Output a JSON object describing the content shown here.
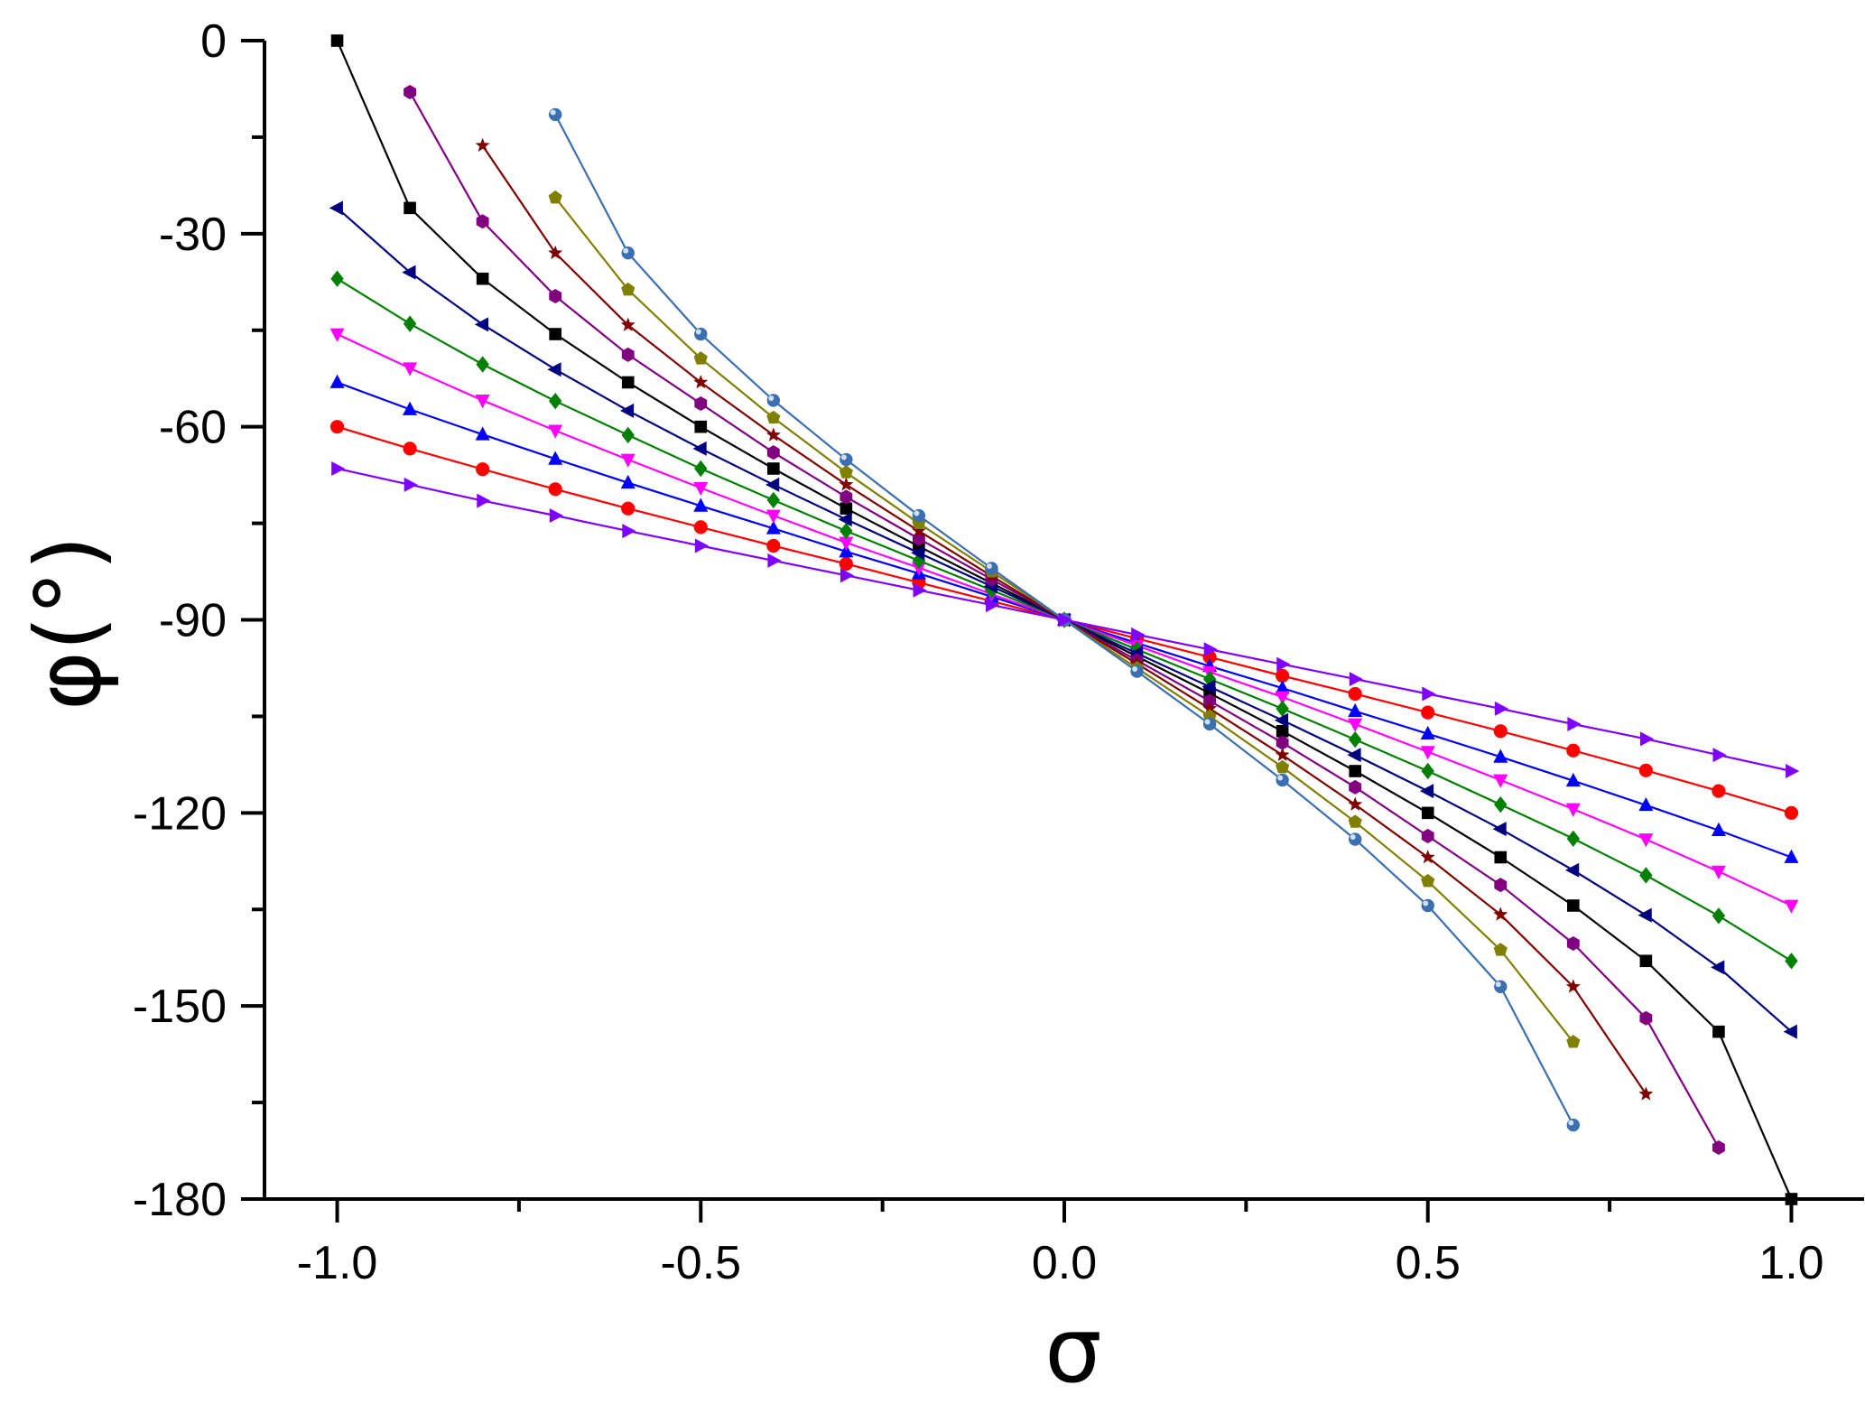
{
  "chart_data": {
    "type": "line",
    "xlabel": "σ",
    "ylabel": "φ(°)",
    "xlim": [
      -1.1,
      1.1
    ],
    "ylim": [
      -180,
      0
    ],
    "x_ticks": [
      -1.0,
      -0.5,
      0.0,
      0.5,
      1.0
    ],
    "x_tick_labels": [
      "-1.0",
      "-0.5",
      "0.0",
      "0.5",
      "1.0"
    ],
    "y_ticks": [
      0,
      -30,
      -60,
      -90,
      -120,
      -150,
      -180
    ],
    "y_tick_labels": [
      "0",
      "-30",
      "-60",
      "-90",
      "-120",
      "-150",
      "-180"
    ],
    "grid": false,
    "legend": "none",
    "series": [
      {
        "color": "#000000",
        "marker": "square",
        "x": [
          -1.0,
          -0.9,
          -0.8,
          -0.7,
          -0.6,
          -0.5,
          -0.4,
          -0.3,
          -0.2,
          -0.1,
          0.0,
          0.1,
          0.2,
          0.3,
          0.4,
          0.5,
          0.6,
          0.7,
          0.8,
          0.9,
          1.0
        ],
        "y": [
          0,
          -26,
          -37,
          -45.6,
          -53.1,
          -60,
          -66.5,
          -72.7,
          -78.6,
          -84.3,
          -90,
          -95.7,
          -101.4,
          -107.3,
          -113.5,
          -120,
          -126.9,
          -134.4,
          -143,
          -154,
          -180
        ]
      },
      {
        "color": "#ff0000",
        "marker": "circle",
        "x": [
          -1.0,
          -0.9,
          -0.8,
          -0.7,
          -0.6,
          -0.5,
          -0.4,
          -0.3,
          -0.2,
          -0.1,
          0.0,
          0.1,
          0.2,
          0.3,
          0.4,
          0.5,
          0.6,
          0.7,
          0.8,
          0.9,
          1.0
        ],
        "y": [
          -60,
          -63.4,
          -66.6,
          -69.7,
          -72.7,
          -75.6,
          -78.5,
          -81.3,
          -84.2,
          -87.1,
          -90,
          -92.9,
          -95.8,
          -98.7,
          -101.5,
          -104.4,
          -107.3,
          -110.3,
          -113.4,
          -116.6,
          -120
        ]
      },
      {
        "color": "#0000ff",
        "marker": "triangle-up",
        "x": [
          -1.0,
          -0.9,
          -0.8,
          -0.7,
          -0.6,
          -0.5,
          -0.4,
          -0.3,
          -0.2,
          -0.1,
          0.0,
          0.1,
          0.2,
          0.3,
          0.4,
          0.5,
          0.6,
          0.7,
          0.8,
          0.9,
          1.0
        ],
        "y": [
          -53.1,
          -57.3,
          -61.2,
          -65,
          -68.7,
          -72.3,
          -75.8,
          -79.4,
          -82.8,
          -86.4,
          -90,
          -93.6,
          -97.2,
          -100.6,
          -104.2,
          -107.7,
          -111.3,
          -115,
          -118.8,
          -122.7,
          -126.9
        ]
      },
      {
        "color": "#ff00ff",
        "marker": "triangle-down",
        "x": [
          -1.0,
          -0.9,
          -0.8,
          -0.7,
          -0.6,
          -0.5,
          -0.4,
          -0.3,
          -0.2,
          -0.1,
          0.0,
          0.1,
          0.2,
          0.3,
          0.4,
          0.5,
          0.6,
          0.7,
          0.8,
          0.9,
          1.0
        ],
        "y": [
          -45.6,
          -50.9,
          -55.9,
          -60.6,
          -65.1,
          -69.5,
          -73.8,
          -78,
          -81.9,
          -86,
          -90,
          -94,
          -98.1,
          -102,
          -106.2,
          -110.5,
          -114.9,
          -119.4,
          -124.1,
          -129.1,
          -134.4
        ]
      },
      {
        "color": "#008000",
        "marker": "diamond",
        "x": [
          -1.0,
          -0.9,
          -0.8,
          -0.7,
          -0.6,
          -0.5,
          -0.4,
          -0.3,
          -0.2,
          -0.1,
          0.0,
          0.1,
          0.2,
          0.3,
          0.4,
          0.5,
          0.6,
          0.7,
          0.8,
          0.9,
          1.0
        ],
        "y": [
          -37,
          -44,
          -50.3,
          -56,
          -61.3,
          -66.5,
          -71.4,
          -76.2,
          -80.8,
          -85.4,
          -90,
          -94.6,
          -99.2,
          -103.8,
          -108.6,
          -113.5,
          -118.7,
          -124,
          -129.7,
          -136,
          -143
        ]
      },
      {
        "color": "#000080",
        "marker": "triangle-left",
        "x": [
          -1.0,
          -0.9,
          -0.8,
          -0.7,
          -0.6,
          -0.5,
          -0.4,
          -0.3,
          -0.2,
          -0.1,
          0.0,
          0.1,
          0.2,
          0.3,
          0.4,
          0.5,
          0.6,
          0.7,
          0.8,
          0.9,
          1.0
        ],
        "y": [
          -26,
          -36,
          -44.1,
          -51.1,
          -57.5,
          -63.4,
          -69,
          -74.4,
          -79.6,
          -84.8,
          -90,
          -95.2,
          -100.4,
          -105.6,
          -111,
          -116.6,
          -122.5,
          -128.9,
          -135.9,
          -144,
          -154
        ]
      },
      {
        "color": "#800080",
        "marker": "hexagon",
        "x": [
          -0.9,
          -0.8,
          -0.7,
          -0.6,
          -0.5,
          -0.4,
          -0.3,
          -0.2,
          -0.1,
          0.0,
          0.1,
          0.2,
          0.3,
          0.4,
          0.5,
          0.6,
          0.7,
          0.8,
          0.9
        ],
        "y": [
          -8,
          -28.1,
          -39.7,
          -48.8,
          -56.4,
          -64,
          -70.9,
          -77.4,
          -83.7,
          -90,
          -96.3,
          -102.6,
          -109.1,
          -116,
          -123.6,
          -131.2,
          -140.3,
          -151.9,
          -172
        ]
      },
      {
        "color": "#800000",
        "marker": "star",
        "x": [
          -0.8,
          -0.7,
          -0.6,
          -0.5,
          -0.4,
          -0.3,
          -0.2,
          -0.1,
          0.0,
          0.1,
          0.2,
          0.3,
          0.4,
          0.5,
          0.6,
          0.7,
          0.8
        ],
        "y": [
          -16.3,
          -33,
          -44.2,
          -53.1,
          -61.3,
          -69,
          -76.2,
          -83.2,
          -90,
          -96.8,
          -103.8,
          -111,
          -118.7,
          -126.9,
          -135.8,
          -147,
          -163.7
        ]
      },
      {
        "color": "#808000",
        "marker": "pentagon",
        "x": [
          -0.7,
          -0.6,
          -0.5,
          -0.4,
          -0.3,
          -0.2,
          -0.1,
          0.0,
          0.1,
          0.2,
          0.3,
          0.4,
          0.5,
          0.6,
          0.7
        ],
        "y": [
          -24.4,
          -38.7,
          -49.4,
          -58.6,
          -67.1,
          -75,
          -82.5,
          -90,
          -97.5,
          -105,
          -112.9,
          -121.4,
          -130.6,
          -141.3,
          -155.6
        ]
      },
      {
        "color": "#3c6fb0",
        "marker": "sphere",
        "x": [
          -0.7,
          -0.6,
          -0.5,
          -0.4,
          -0.3,
          -0.2,
          -0.1,
          0.0,
          0.1,
          0.2,
          0.3,
          0.4,
          0.5,
          0.6,
          0.7
        ],
        "y": [
          -11.5,
          -33,
          -45.6,
          -55.9,
          -65.1,
          -73.8,
          -82,
          -90,
          -98,
          -106.2,
          -114.9,
          -124.1,
          -134.4,
          -147,
          -168.5
        ]
      },
      {
        "color": "#8000ff",
        "marker": "triangle-right",
        "x": [
          -1.0,
          -0.9,
          -0.8,
          -0.7,
          -0.6,
          -0.5,
          -0.4,
          -0.3,
          -0.2,
          -0.1,
          0.0,
          0.1,
          0.2,
          0.3,
          0.4,
          0.5,
          0.6,
          0.7,
          0.8,
          0.9,
          1.0
        ],
        "y": [
          -66.5,
          -69,
          -71.5,
          -73.8,
          -76.2,
          -78.5,
          -80.8,
          -83.1,
          -85.4,
          -87.7,
          -90,
          -92.3,
          -94.6,
          -96.9,
          -99.2,
          -101.5,
          -103.8,
          -106.2,
          -108.5,
          -111,
          -113.5
        ]
      }
    ]
  }
}
